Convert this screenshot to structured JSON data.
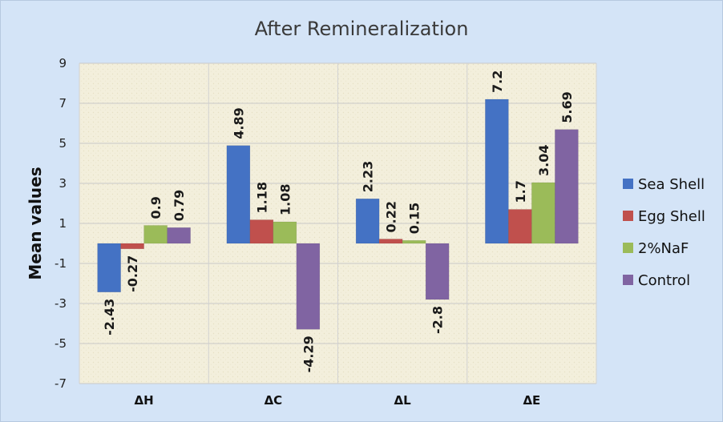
{
  "chart_data": {
    "type": "bar",
    "title": "After Remineralization",
    "ylabel": "Mean  values",
    "xlabel": "",
    "categories": [
      "ΔH",
      "ΔC",
      "ΔL",
      "ΔE"
    ],
    "ylim": [
      -7,
      9
    ],
    "yticks": [
      9,
      7,
      5,
      3,
      1,
      -1,
      -3,
      -5,
      -7
    ],
    "grid": true,
    "legend_position": "right",
    "series": [
      {
        "name": "Sea Shell",
        "color": "#4472c4",
        "values": [
          -2.43,
          4.89,
          2.23,
          7.2
        ]
      },
      {
        "name": "Egg Shell",
        "color": "#c0504d",
        "values": [
          -0.27,
          1.18,
          0.22,
          1.7
        ]
      },
      {
        "name": "2%NaF",
        "color": "#9bbb59",
        "values": [
          0.9,
          1.08,
          0.15,
          3.04
        ]
      },
      {
        "name": "Control",
        "color": "#8064a2",
        "values": [
          0.79,
          -4.29,
          -2.8,
          5.69
        ]
      }
    ]
  }
}
